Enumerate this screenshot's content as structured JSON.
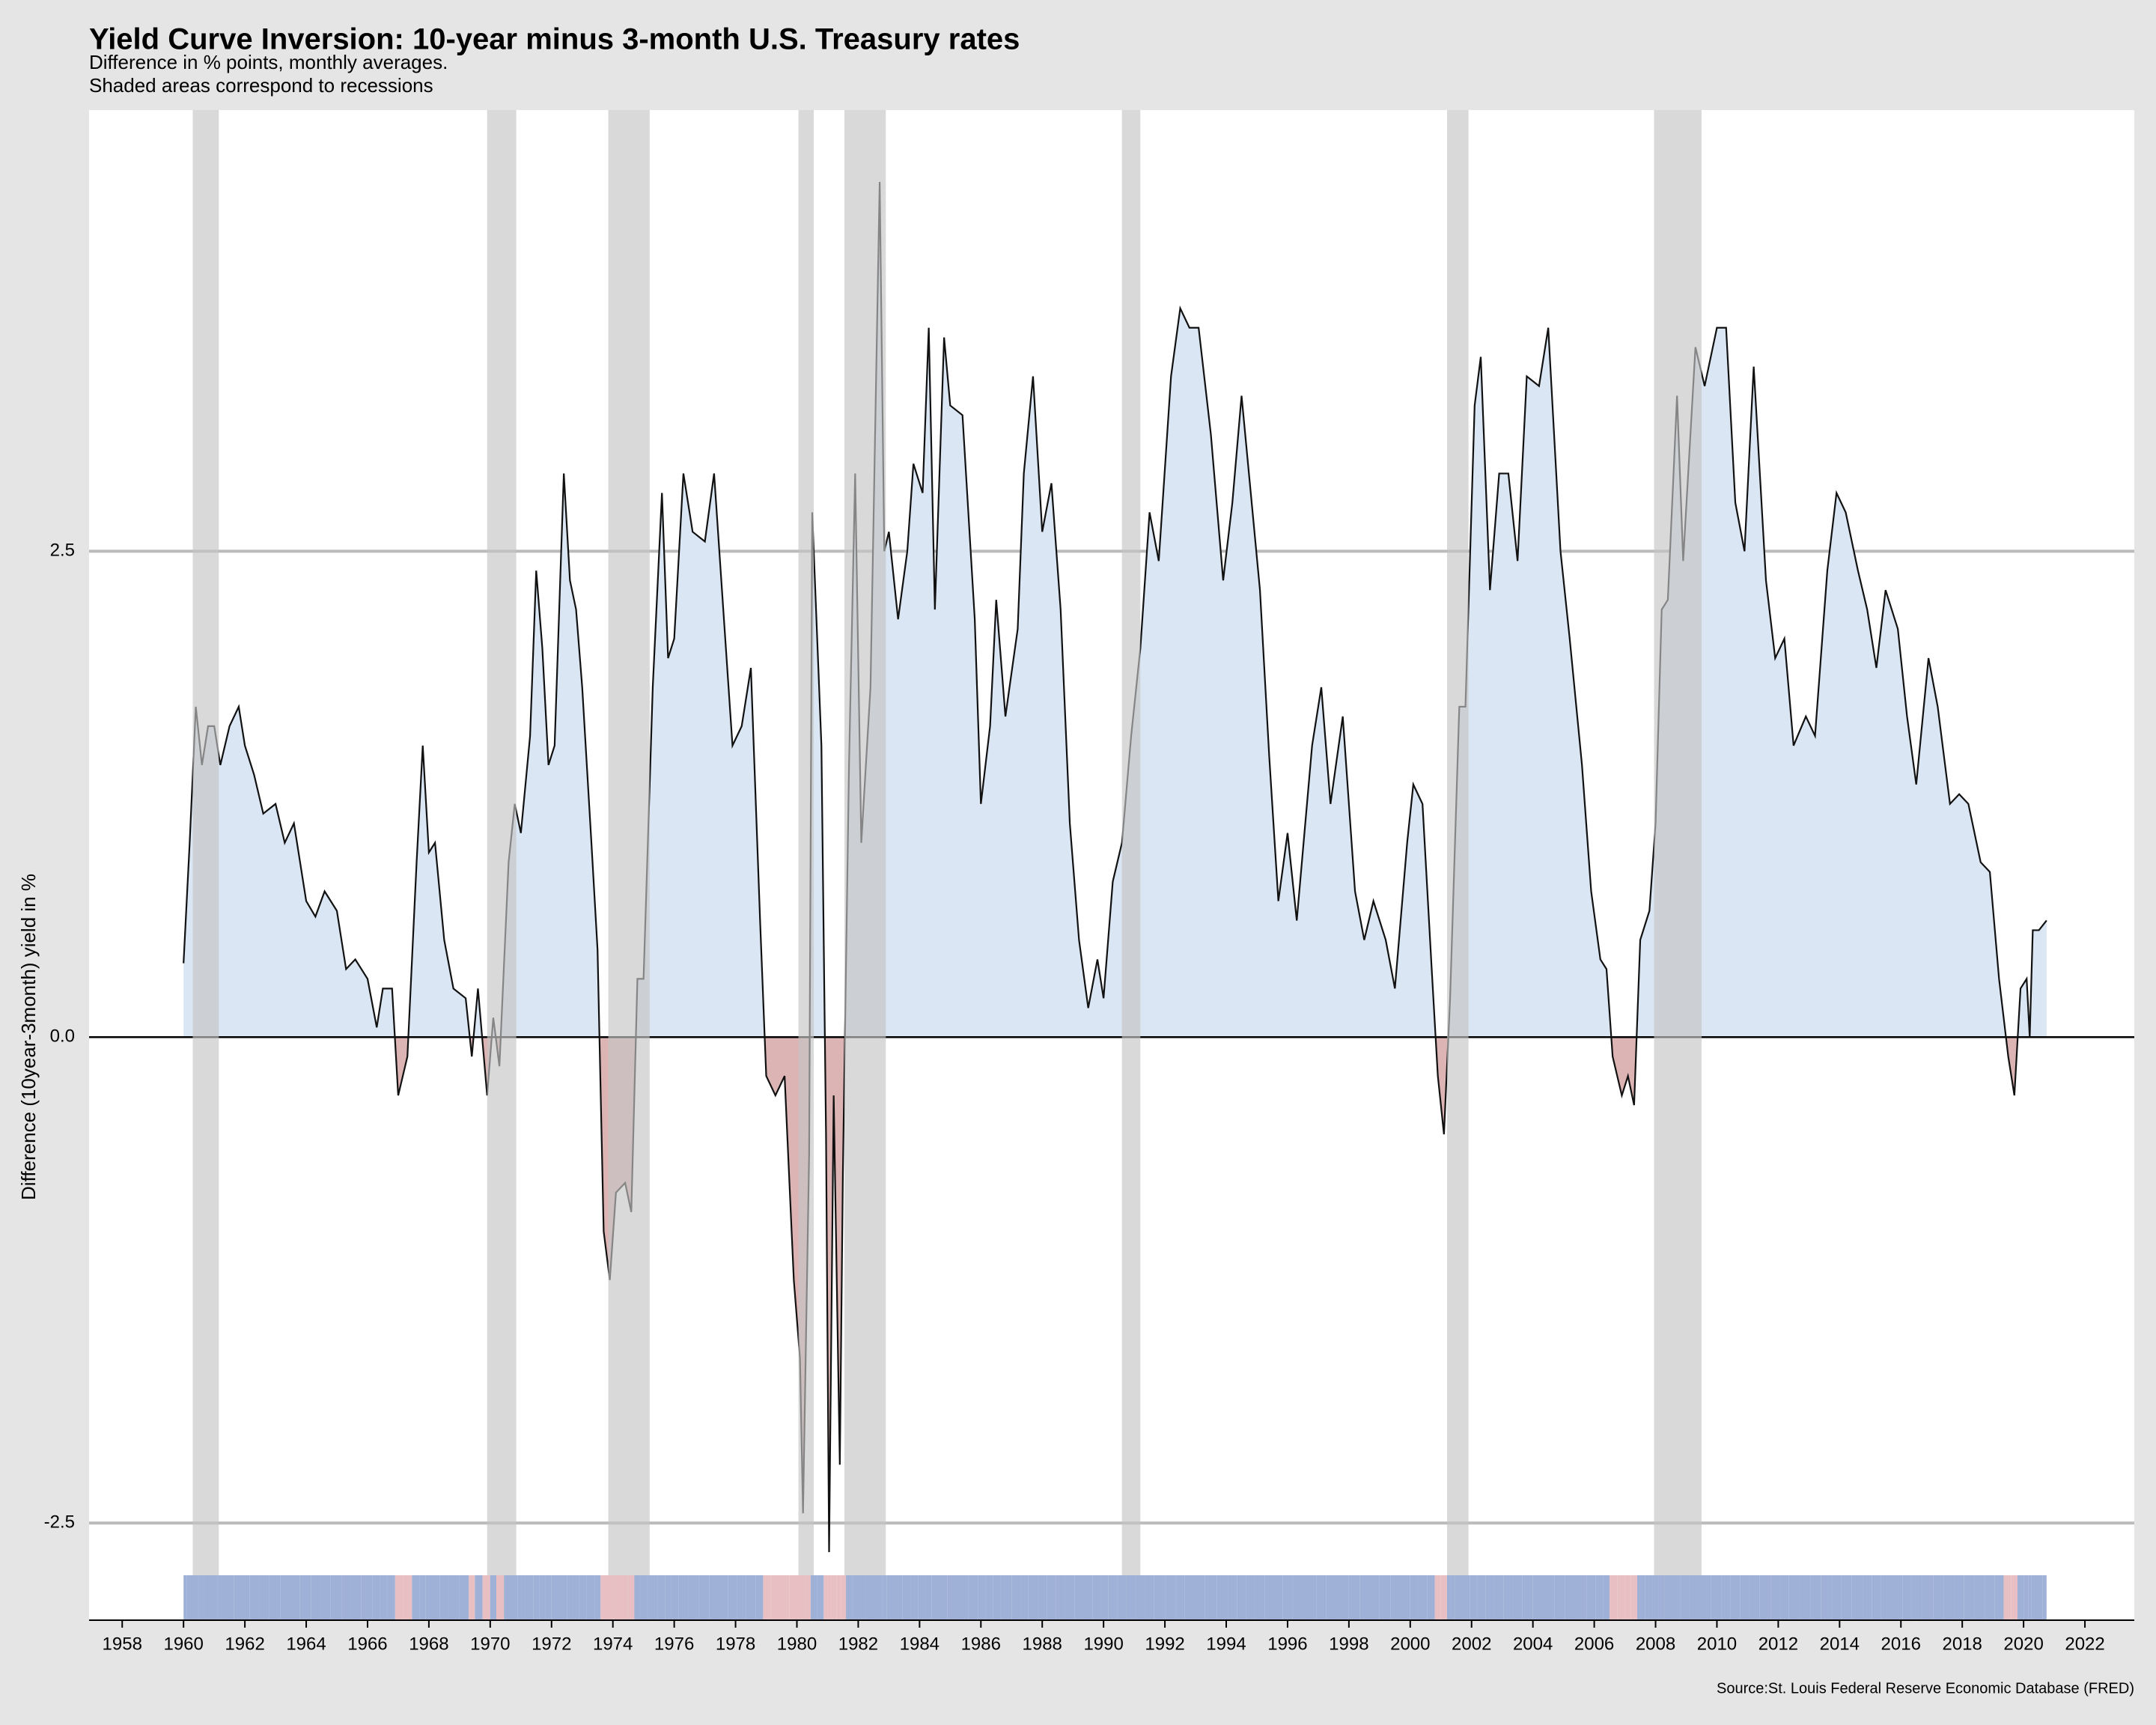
{
  "chart_data": {
    "type": "area",
    "title": "Yield Curve Inversion: 10-year minus 3-month U.S. Treasury rates",
    "subtitle": [
      "Difference in % points, monthly averages.",
      "Shaded areas correspond to recessions"
    ],
    "y_label": "Difference (10year-3month) yield in %",
    "source": "Source:St. Louis Federal Reserve Economic Database (FRED)",
    "x": [
      1960.0,
      1960.2,
      1960.4,
      1960.6,
      1960.8,
      1961.0,
      1961.2,
      1961.5,
      1961.8,
      1962.0,
      1962.3,
      1962.6,
      1963.0,
      1963.3,
      1963.6,
      1964.0,
      1964.3,
      1964.6,
      1965.0,
      1965.3,
      1965.6,
      1966.0,
      1966.3,
      1966.5,
      1966.8,
      1967.0,
      1967.3,
      1967.6,
      1967.8,
      1968.0,
      1968.2,
      1968.5,
      1968.8,
      1969.2,
      1969.4,
      1969.6,
      1969.9,
      1970.1,
      1970.3,
      1970.6,
      1970.8,
      1971.0,
      1971.3,
      1971.5,
      1971.7,
      1971.9,
      1972.1,
      1972.4,
      1972.6,
      1972.8,
      1973.0,
      1973.3,
      1973.5,
      1973.7,
      1973.9,
      1974.1,
      1974.4,
      1974.6,
      1974.8,
      1975.0,
      1975.3,
      1975.6,
      1975.8,
      1976.0,
      1976.3,
      1976.6,
      1977.0,
      1977.3,
      1977.6,
      1977.9,
      1978.2,
      1978.5,
      1978.8,
      1979.0,
      1979.3,
      1979.6,
      1979.9,
      1980.1,
      1980.2,
      1980.4,
      1980.5,
      1980.8,
      1980.95,
      1981.05,
      1981.2,
      1981.4,
      1981.5,
      1981.7,
      1981.9,
      1982.1,
      1982.4,
      1982.7,
      1982.85,
      1983.0,
      1983.3,
      1983.6,
      1983.8,
      1984.1,
      1984.3,
      1984.5,
      1984.8,
      1985.0,
      1985.4,
      1985.8,
      1986.0,
      1986.3,
      1986.5,
      1986.8,
      1987.2,
      1987.4,
      1987.7,
      1988.0,
      1988.3,
      1988.6,
      1988.9,
      1989.2,
      1989.5,
      1989.8,
      1990.0,
      1990.3,
      1990.6,
      1990.9,
      1991.2,
      1991.5,
      1991.8,
      1992.2,
      1992.5,
      1992.8,
      1993.1,
      1993.5,
      1993.9,
      1994.2,
      1994.5,
      1994.8,
      1995.1,
      1995.4,
      1995.7,
      1996.0,
      1996.3,
      1996.8,
      1997.1,
      1997.4,
      1997.8,
      1998.2,
      1998.5,
      1998.8,
      1999.2,
      1999.5,
      1999.9,
      2000.1,
      2000.4,
      2000.7,
      2000.9,
      2001.1,
      2001.3,
      2001.6,
      2001.8,
      2002.1,
      2002.3,
      2002.6,
      2002.9,
      2003.2,
      2003.5,
      2003.8,
      2004.2,
      2004.5,
      2004.9,
      2005.2,
      2005.6,
      2005.9,
      2006.2,
      2006.4,
      2006.6,
      2006.9,
      2007.1,
      2007.3,
      2007.5,
      2007.8,
      2008.0,
      2008.2,
      2008.4,
      2008.7,
      2008.9,
      2009.3,
      2009.6,
      2010.0,
      2010.3,
      2010.6,
      2010.9,
      2011.2,
      2011.6,
      2011.9,
      2012.2,
      2012.5,
      2012.9,
      2013.2,
      2013.6,
      2013.9,
      2014.2,
      2014.6,
      2014.9,
      2015.2,
      2015.5,
      2015.9,
      2016.2,
      2016.5,
      2016.9,
      2017.2,
      2017.6,
      2017.9,
      2018.2,
      2018.6,
      2018.9,
      2019.2,
      2019.5,
      2019.7,
      2019.9,
      2020.1,
      2020.2,
      2020.3,
      2020.5,
      2020.75
    ],
    "values": [
      0.38,
      1.0,
      1.7,
      1.4,
      1.6,
      1.6,
      1.4,
      1.6,
      1.7,
      1.5,
      1.35,
      1.15,
      1.2,
      1.0,
      1.1,
      0.7,
      0.62,
      0.75,
      0.65,
      0.35,
      0.4,
      0.3,
      0.05,
      0.25,
      0.25,
      -0.3,
      -0.1,
      0.9,
      1.5,
      0.95,
      1.0,
      0.5,
      0.25,
      0.2,
      -0.1,
      0.25,
      -0.3,
      0.1,
      -0.15,
      0.9,
      1.2,
      1.05,
      1.55,
      2.4,
      2.0,
      1.4,
      1.5,
      2.9,
      2.35,
      2.2,
      1.8,
      1.0,
      0.45,
      -1.0,
      -1.25,
      -0.8,
      -0.75,
      -0.9,
      0.3,
      0.3,
      1.8,
      2.8,
      1.95,
      2.05,
      2.9,
      2.6,
      2.55,
      2.9,
      2.2,
      1.5,
      1.6,
      1.9,
      0.6,
      -0.2,
      -0.3,
      -0.2,
      -1.25,
      -1.65,
      -2.45,
      -0.6,
      2.7,
      1.5,
      -0.5,
      -2.65,
      -0.3,
      -2.2,
      -0.7,
      1.4,
      2.9,
      1.0,
      1.8,
      4.4,
      2.5,
      2.6,
      2.15,
      2.5,
      2.95,
      2.8,
      3.65,
      2.2,
      3.6,
      3.25,
      3.2,
      2.15,
      1.2,
      1.6,
      2.25,
      1.65,
      2.1,
      2.9,
      3.4,
      2.6,
      2.85,
      2.2,
      1.1,
      0.5,
      0.15,
      0.4,
      0.2,
      0.8,
      1.0,
      1.55,
      2.0,
      2.7,
      2.45,
      3.4,
      3.75,
      3.65,
      3.65,
      3.1,
      2.35,
      2.75,
      3.3,
      2.8,
      2.3,
      1.45,
      0.7,
      1.05,
      0.6,
      1.5,
      1.8,
      1.2,
      1.65,
      0.75,
      0.5,
      0.7,
      0.5,
      0.25,
      1.0,
      1.3,
      1.2,
      0.35,
      -0.2,
      -0.5,
      0.2,
      1.7,
      1.7,
      3.25,
      3.5,
      2.3,
      2.9,
      2.9,
      2.45,
      3.4,
      3.35,
      3.65,
      2.5,
      2.05,
      1.4,
      0.75,
      0.4,
      0.35,
      -0.1,
      -0.3,
      -0.2,
      -0.35,
      0.5,
      0.65,
      1.1,
      2.2,
      2.25,
      3.3,
      2.45,
      3.55,
      3.35,
      3.65,
      3.65,
      2.75,
      2.5,
      3.45,
      2.35,
      1.95,
      2.05,
      1.5,
      1.65,
      1.55,
      2.4,
      2.8,
      2.7,
      2.4,
      2.2,
      1.9,
      2.3,
      2.1,
      1.65,
      1.3,
      1.95,
      1.7,
      1.2,
      1.25,
      1.2,
      0.9,
      0.85,
      0.3,
      -0.1,
      -0.3,
      0.25,
      0.3,
      0.0,
      0.55,
      0.55,
      0.6
    ],
    "recessions": [
      [
        1960.3,
        1961.15
      ],
      [
        1969.9,
        1970.85
      ],
      [
        1973.85,
        1975.2
      ],
      [
        1980.05,
        1980.55
      ],
      [
        1981.55,
        1982.9
      ],
      [
        1990.6,
        1991.2
      ],
      [
        2001.2,
        2001.9
      ],
      [
        2007.95,
        2009.5
      ]
    ],
    "line_color": "#111111",
    "pos_color": "#dae6f3",
    "neg_color": "#dcb4b4",
    "rug_pos_color": "#9fb1d6",
    "rug_neg_color": "#e8c0c4",
    "recession_color": "#c4c4c4",
    "xlim": [
      1956.92,
      2023.61
    ],
    "xticks": [
      1958,
      1960,
      1962,
      1964,
      1966,
      1968,
      1970,
      1972,
      1974,
      1976,
      1978,
      1980,
      1982,
      1984,
      1986,
      1988,
      1990,
      1992,
      1994,
      1996,
      1998,
      2000,
      2002,
      2004,
      2006,
      2008,
      2010,
      2012,
      2014,
      2016,
      2018,
      2020,
      2022
    ],
    "ylim": [
      -3.0,
      4.77
    ],
    "yticks": [
      -2.5,
      {
        "value": 0,
        "label": "0.0"
      },
      2.5
    ],
    "grid": true
  }
}
